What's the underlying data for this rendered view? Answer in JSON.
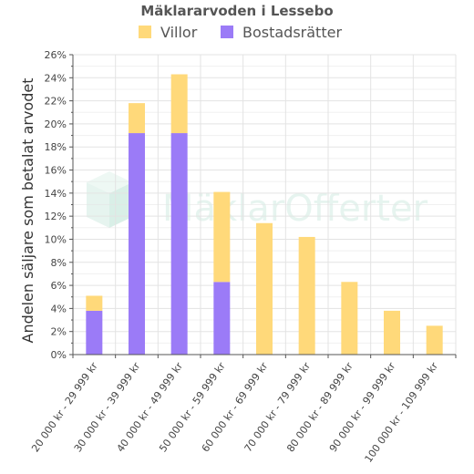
{
  "chart_data": {
    "type": "bar",
    "stacked": true,
    "title": "Mäklararvoden i Lessebo",
    "ylabel": "Andelen säljare som betalat arvodet",
    "xlabel": "",
    "categories": [
      "20 000 kr - 29 999 kr",
      "30 000 kr - 39 999 kr",
      "40 000 kr - 49 999 kr",
      "50 000 kr - 59 999 kr",
      "60 000 kr - 69 999 kr",
      "70 000 kr - 79 999 kr",
      "80 000 kr - 89 999 kr",
      "90 000 kr - 99 999 kr",
      "100 000 kr - 109 999 kr"
    ],
    "series": [
      {
        "name": "Bostadsrätter",
        "color": "#9b7bf7",
        "values": [
          3.8,
          19.2,
          19.2,
          6.3,
          0,
          0,
          0,
          0,
          0
        ]
      },
      {
        "name": "Villor",
        "color": "#ffd97a",
        "values": [
          1.3,
          2.6,
          5.1,
          7.8,
          11.4,
          10.2,
          6.3,
          3.8,
          2.5
        ]
      }
    ],
    "legend": {
      "position": "top",
      "order": [
        "Villor",
        "Bostadsrätter"
      ]
    },
    "ylim": [
      0,
      26
    ],
    "yticks": [
      0,
      2,
      4,
      6,
      8,
      10,
      12,
      14,
      16,
      18,
      20,
      22,
      24,
      26
    ],
    "ytick_labels": [
      "0%",
      "2%",
      "4%",
      "6%",
      "8%",
      "10%",
      "12%",
      "14%",
      "16%",
      "18%",
      "20%",
      "22%",
      "24%",
      "26%"
    ],
    "grid": true
  },
  "watermark": {
    "text": "MäklarOfferter"
  }
}
